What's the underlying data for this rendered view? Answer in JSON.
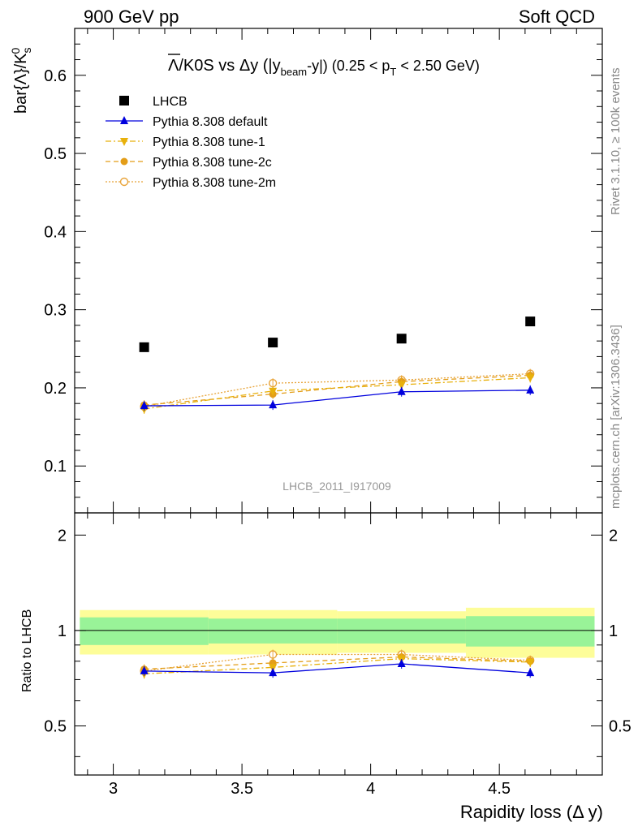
{
  "header": {
    "left": "900 GeV pp",
    "right": "Soft QCD"
  },
  "side_labels": {
    "rivet": "Rivet 3.1.10, ≥ 100k events",
    "mcplots": "mcplots.cern.ch [arXiv:1306.3436]"
  },
  "watermark": "LHCB_2011_I917009",
  "chart_data": {
    "type": "scatter",
    "title_parts": {
      "main": "Λ/K0S vs Δy (|y",
      "sub1": "beam",
      "mid": "-y|) (0.25 < p",
      "sub2": "T",
      "end": " < 2.50 GeV)"
    },
    "ylabel": "bar{Λ}/K",
    "ylabel_sub": "s",
    "ylabel_sup": "0",
    "xlabel": "Rapidity loss (Δ y)",
    "ratio_ylabel": "Ratio to LHCB",
    "xlim": [
      2.85,
      4.9
    ],
    "ylim": [
      0.04,
      0.66
    ],
    "ratio_ylim": [
      0.35,
      2.35
    ],
    "x_ticks": [
      3,
      3.5,
      4,
      4.5
    ],
    "x_tick_labels": [
      "3",
      "3.5",
      "4",
      "4.5"
    ],
    "y_ticks": [
      0.1,
      0.2,
      0.3,
      0.4,
      0.5,
      0.6
    ],
    "y_tick_labels": [
      "0.1",
      "0.2",
      "0.3",
      "0.4",
      "0.5",
      "0.6"
    ],
    "ratio_ticks": [
      0.5,
      1,
      2
    ],
    "ratio_tick_labels": [
      "0.5",
      "1",
      "2"
    ],
    "bins": [
      [
        2.87,
        3.37
      ],
      [
        3.37,
        3.87
      ],
      [
        3.87,
        4.37
      ],
      [
        4.37,
        4.87
      ]
    ],
    "x": [
      3.12,
      3.62,
      4.12,
      4.62
    ],
    "data": {
      "name": "LHCB",
      "values": [
        0.252,
        0.258,
        0.263,
        0.285
      ],
      "band_stat": [
        0.1,
        0.09,
        0.09,
        0.11
      ],
      "band_total": [
        0.16,
        0.16,
        0.15,
        0.18
      ],
      "color": "#000000"
    },
    "series": [
      {
        "name": "Pythia 8.308 default",
        "values": [
          0.177,
          0.178,
          0.195,
          0.197
        ],
        "ratio": [
          0.745,
          0.735,
          0.785,
          0.735
        ],
        "color": "#0000dd",
        "marker": "triangle-up",
        "dash": ""
      },
      {
        "name": "Pythia 8.308 tune-1",
        "values": [
          0.173,
          0.196,
          0.204,
          0.213
        ],
        "ratio": [
          0.73,
          0.765,
          0.815,
          0.795
        ],
        "color": "#e8b10c",
        "marker": "triangle-down",
        "dash": "7,3,2,3"
      },
      {
        "name": "Pythia 8.308 tune-2c",
        "values": [
          0.178,
          0.192,
          0.208,
          0.216
        ],
        "ratio": [
          0.755,
          0.79,
          0.825,
          0.8
        ],
        "color": "#e39d18",
        "marker": "circle",
        "dash": "6,4"
      },
      {
        "name": "Pythia 8.308 tune-2m",
        "values": [
          0.176,
          0.206,
          0.21,
          0.218
        ],
        "ratio": [
          0.745,
          0.84,
          0.84,
          0.805
        ],
        "color": "#e8a43a",
        "marker": "circle-open",
        "dash": "2,2"
      }
    ],
    "band_colors": {
      "stat": "#99f398",
      "total": "#fdfd99"
    },
    "legend_position": "top-left",
    "grid": false
  }
}
